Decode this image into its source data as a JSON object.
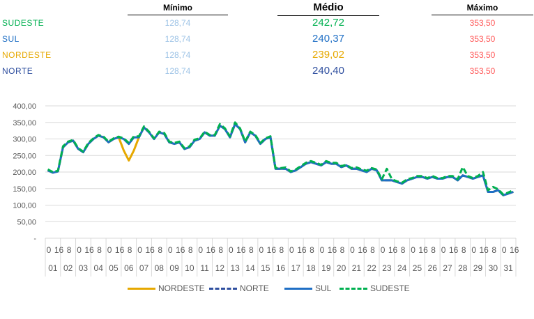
{
  "summary": {
    "headers": {
      "min": "Mínimo",
      "avg": "Médio",
      "max": "Máximo"
    },
    "rows": [
      {
        "region": "SUDESTE",
        "min": "128,74",
        "avg": "242,72",
        "max": "353,50",
        "color": "#00b050"
      },
      {
        "region": "SUL",
        "min": "128,74",
        "avg": "240,37",
        "max": "353,50",
        "color": "#1f6fc5"
      },
      {
        "region": "NORDESTE",
        "min": "128,74",
        "avg": "239,02",
        "max": "353,50",
        "color": "#e6a800"
      },
      {
        "region": "NORTE",
        "min": "128,74",
        "avg": "240,40",
        "max": "353,50",
        "color": "#2f4f9f"
      }
    ]
  },
  "chart_data": {
    "type": "line",
    "ylim": [
      0,
      400
    ],
    "yticks": [
      "-",
      "50,00",
      "100,00",
      "150,00",
      "200,00",
      "250,00",
      "300,00",
      "350,00",
      "400,00"
    ],
    "days": [
      "01",
      "02",
      "03",
      "04",
      "05",
      "06",
      "07",
      "08",
      "09",
      "10",
      "11",
      "12",
      "13",
      "14",
      "15",
      "16",
      "17",
      "18",
      "19",
      "20",
      "21",
      "22",
      "23",
      "24",
      "25",
      "26",
      "27",
      "28",
      "29",
      "30",
      "31"
    ],
    "hour_step": 16,
    "grid": true,
    "legend_position": "bottom",
    "sample_hours": [
      0,
      8,
      16
    ],
    "series": [
      {
        "name": "NORDESTE",
        "color": "#e6a800",
        "style": "solid",
        "values": [
          205,
          198,
          202,
          275,
          290,
          295,
          270,
          260,
          285,
          300,
          310,
          305,
          290,
          300,
          305,
          265,
          235,
          265,
          305,
          335,
          320,
          300,
          320,
          315,
          290,
          285,
          290,
          270,
          275,
          295,
          300,
          320,
          310,
          310,
          340,
          330,
          305,
          345,
          330,
          290,
          320,
          310,
          285,
          300,
          305,
          210,
          210,
          210,
          200,
          205,
          215,
          225,
          230,
          225,
          220,
          230,
          225,
          225,
          215,
          220,
          210,
          210,
          205,
          200,
          210,
          205,
          175,
          175,
          175,
          170,
          165,
          175,
          180,
          185,
          185,
          180,
          185,
          180,
          180,
          185,
          185,
          175,
          190,
          185,
          180,
          185,
          190,
          140,
          140,
          145,
          130,
          135,
          140
        ]
      },
      {
        "name": "NORTE",
        "color": "#2f4f9f",
        "style": "dash",
        "values": [
          205,
          198,
          202,
          275,
          290,
          295,
          270,
          260,
          285,
          300,
          310,
          305,
          290,
          300,
          305,
          300,
          285,
          305,
          305,
          335,
          320,
          300,
          320,
          315,
          290,
          285,
          290,
          270,
          275,
          295,
          300,
          320,
          310,
          310,
          340,
          330,
          305,
          345,
          330,
          290,
          320,
          310,
          285,
          300,
          305,
          210,
          210,
          210,
          200,
          205,
          215,
          225,
          230,
          225,
          220,
          230,
          225,
          225,
          215,
          220,
          210,
          210,
          205,
          200,
          210,
          205,
          175,
          175,
          175,
          170,
          165,
          175,
          180,
          185,
          185,
          180,
          185,
          180,
          180,
          185,
          185,
          175,
          190,
          185,
          180,
          185,
          190,
          140,
          140,
          145,
          130,
          135,
          140
        ]
      },
      {
        "name": "SUL",
        "color": "#1f6fc5",
        "style": "solid",
        "values": [
          205,
          198,
          202,
          275,
          290,
          295,
          270,
          260,
          285,
          300,
          310,
          305,
          290,
          300,
          305,
          300,
          285,
          305,
          305,
          335,
          320,
          300,
          320,
          315,
          290,
          285,
          290,
          270,
          275,
          295,
          300,
          320,
          310,
          310,
          340,
          330,
          305,
          345,
          330,
          290,
          320,
          310,
          285,
          300,
          305,
          210,
          210,
          210,
          200,
          205,
          215,
          225,
          230,
          225,
          220,
          230,
          225,
          225,
          215,
          220,
          210,
          210,
          205,
          200,
          210,
          205,
          175,
          175,
          175,
          170,
          165,
          175,
          180,
          185,
          185,
          180,
          185,
          180,
          180,
          185,
          185,
          175,
          190,
          185,
          180,
          185,
          190,
          140,
          140,
          145,
          130,
          135,
          140
        ]
      },
      {
        "name": "SUDESTE",
        "color": "#00b050",
        "style": "dash",
        "values": [
          208,
          200,
          204,
          278,
          292,
          297,
          272,
          262,
          288,
          302,
          312,
          307,
          292,
          302,
          307,
          302,
          288,
          308,
          308,
          338,
          322,
          302,
          322,
          318,
          292,
          288,
          292,
          272,
          278,
          298,
          302,
          322,
          312,
          312,
          345,
          332,
          308,
          350,
          332,
          292,
          322,
          312,
          288,
          302,
          308,
          212,
          212,
          214,
          202,
          208,
          218,
          228,
          233,
          228,
          222,
          233,
          228,
          228,
          218,
          222,
          212,
          214,
          208,
          204,
          212,
          208,
          178,
          210,
          178,
          172,
          168,
          178,
          182,
          188,
          188,
          182,
          188,
          182,
          182,
          188,
          188,
          178,
          215,
          188,
          182,
          188,
          200,
          145,
          155,
          148,
          132,
          138,
          145
        ]
      }
    ]
  }
}
